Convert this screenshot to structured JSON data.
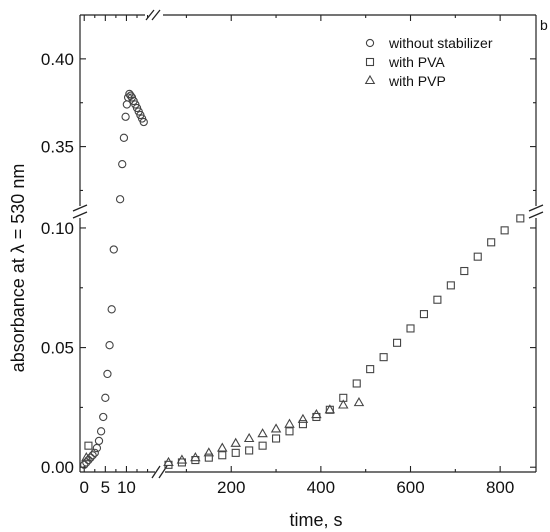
{
  "chart_data": {
    "type": "scatter",
    "panel_letter": "b",
    "xlabel": "time, s",
    "ylabel": "absorbance at λ = 530 nm",
    "x_ticks_early": [
      "0",
      "5",
      "10"
    ],
    "x_ticks_late": [
      "200",
      "400",
      "600",
      "800"
    ],
    "y_ticks_low": [
      "0.00",
      "0.05",
      "0.10"
    ],
    "y_ticks_high": [
      "0.35",
      "0.40"
    ],
    "x_break": {
      "early_range": [
        -1,
        17
      ],
      "late_range": [
        50,
        880
      ]
    },
    "y_break": {
      "low_range": [
        -0.002,
        0.105
      ],
      "high_range": [
        0.315,
        0.425
      ]
    },
    "legend_position": "top-right",
    "grid": false,
    "series": [
      {
        "name": "without stabilizer",
        "marker": "circle",
        "points": [
          [
            0.0,
            0.001
          ],
          [
            0.5,
            0.002
          ],
          [
            1.0,
            0.003
          ],
          [
            1.5,
            0.004
          ],
          [
            2.0,
            0.005
          ],
          [
            2.5,
            0.006
          ],
          [
            3.0,
            0.008
          ],
          [
            3.5,
            0.011
          ],
          [
            4.0,
            0.015
          ],
          [
            4.5,
            0.021
          ],
          [
            5.0,
            0.029
          ],
          [
            5.5,
            0.039
          ],
          [
            6.0,
            0.051
          ],
          [
            6.5,
            0.066
          ],
          [
            7.0,
            0.091
          ],
          [
            8.5,
            0.32
          ],
          [
            9.0,
            0.34
          ],
          [
            9.4,
            0.355
          ],
          [
            9.8,
            0.367
          ],
          [
            10.1,
            0.374
          ],
          [
            10.4,
            0.378
          ],
          [
            10.7,
            0.38
          ],
          [
            11.0,
            0.379
          ],
          [
            11.3,
            0.378
          ],
          [
            11.7,
            0.376
          ],
          [
            12.1,
            0.374
          ],
          [
            12.5,
            0.372
          ],
          [
            12.9,
            0.37
          ],
          [
            13.3,
            0.368
          ],
          [
            13.7,
            0.366
          ],
          [
            14.1,
            0.364
          ]
        ]
      },
      {
        "name": "with PVA",
        "marker": "square",
        "points": [
          [
            1.0,
            0.009
          ],
          [
            60,
            0.001
          ],
          [
            90,
            0.002
          ],
          [
            120,
            0.003
          ],
          [
            150,
            0.004
          ],
          [
            180,
            0.005
          ],
          [
            210,
            0.006
          ],
          [
            240,
            0.007
          ],
          [
            270,
            0.009
          ],
          [
            300,
            0.012
          ],
          [
            330,
            0.015
          ],
          [
            360,
            0.018
          ],
          [
            390,
            0.021
          ],
          [
            420,
            0.024
          ],
          [
            450,
            0.029
          ],
          [
            480,
            0.035
          ],
          [
            510,
            0.041
          ],
          [
            540,
            0.046
          ],
          [
            570,
            0.052
          ],
          [
            600,
            0.058
          ],
          [
            630,
            0.064
          ],
          [
            660,
            0.07
          ],
          [
            690,
            0.076
          ],
          [
            720,
            0.082
          ],
          [
            750,
            0.088
          ],
          [
            780,
            0.094
          ],
          [
            810,
            0.099
          ],
          [
            845,
            0.104
          ]
        ]
      },
      {
        "name": "with PVP",
        "marker": "triangle",
        "points": [
          [
            0.5,
            0.004
          ],
          [
            60,
            0.002
          ],
          [
            90,
            0.003
          ],
          [
            120,
            0.004
          ],
          [
            150,
            0.006
          ],
          [
            180,
            0.008
          ],
          [
            210,
            0.01
          ],
          [
            240,
            0.012
          ],
          [
            270,
            0.014
          ],
          [
            300,
            0.016
          ],
          [
            330,
            0.018
          ],
          [
            360,
            0.02
          ],
          [
            390,
            0.022
          ],
          [
            420,
            0.024
          ],
          [
            450,
            0.026
          ],
          [
            485,
            0.027
          ]
        ]
      }
    ]
  }
}
